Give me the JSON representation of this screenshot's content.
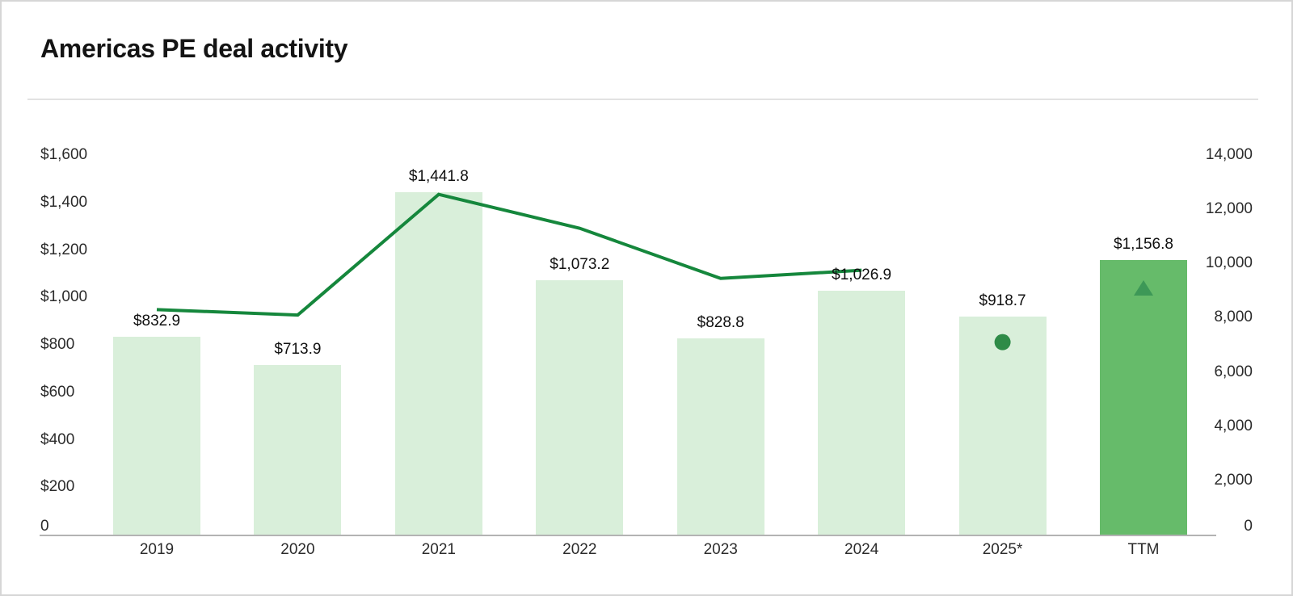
{
  "chart_data": {
    "type": "bar",
    "title": "Americas PE deal activity",
    "categories": [
      "2019",
      "2020",
      "2021",
      "2022",
      "2023",
      "2024",
      "2025*",
      "TTM"
    ],
    "bars": {
      "values": [
        832.9,
        713.9,
        1441.8,
        1073.2,
        828.8,
        1026.9,
        918.7,
        1156.8
      ],
      "labels": [
        "$832.9",
        "$713.9",
        "$1,441.8",
        "$1,073.2",
        "$828.8",
        "$1,026.9",
        "$918.7",
        "$1,156.8"
      ],
      "highlighted_category": "TTM"
    },
    "line": {
      "values": [
        8300,
        8100,
        12550,
        11300,
        9450,
        9750,
        null,
        null
      ]
    },
    "markers": [
      {
        "category": "2025*",
        "shape": "circle",
        "value": 7100
      },
      {
        "category": "TTM",
        "shape": "triangle",
        "value": 9100
      }
    ],
    "left_axis": {
      "min": 0,
      "max": 1600,
      "ticks": [
        {
          "label": "$1,600",
          "value": 1600
        },
        {
          "label": "$1,400",
          "value": 1400
        },
        {
          "label": "$1,200",
          "value": 1200
        },
        {
          "label": "$1,000",
          "value": 1000
        },
        {
          "label": "$800",
          "value": 800
        },
        {
          "label": "$600",
          "value": 600
        },
        {
          "label": "$400",
          "value": 400
        },
        {
          "label": "$200",
          "value": 200
        },
        {
          "label": "0",
          "value": 0
        }
      ]
    },
    "right_axis": {
      "min": 0,
      "max": 14000,
      "ticks": [
        {
          "label": "14,000",
          "value": 14000
        },
        {
          "label": "12,000",
          "value": 12000
        },
        {
          "label": "10,000",
          "value": 10000
        },
        {
          "label": "8,000",
          "value": 8000
        },
        {
          "label": "6,000",
          "value": 6000
        },
        {
          "label": "4,000",
          "value": 4000
        },
        {
          "label": "2,000",
          "value": 2000
        },
        {
          "label": "0",
          "value": 0
        }
      ]
    },
    "grid": false,
    "legend": "none",
    "colors": {
      "bar_fill": "#d9efda",
      "highlight_bar_fill": "#66bb6a",
      "line": "#15873c",
      "circle_marker": "#2e8b47",
      "triangle_marker": "#3d9857"
    }
  }
}
